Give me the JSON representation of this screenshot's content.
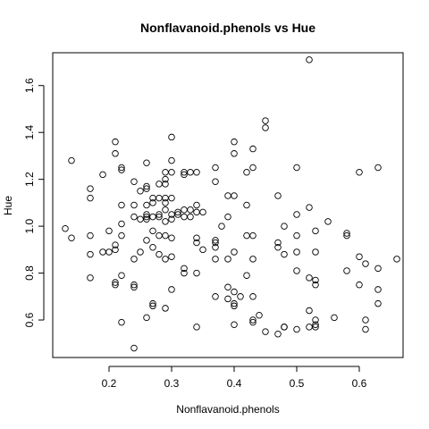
{
  "chart_data": {
    "type": "scatter",
    "title": "Nonflavanoid.phenols vs Hue",
    "xlabel": "Nonflavanoid.phenols",
    "ylabel": "Hue",
    "xlim": [
      0.11,
      0.67
    ],
    "ylim": [
      0.44,
      1.74
    ],
    "xticks": [
      0.2,
      0.3,
      0.4,
      0.5,
      0.6
    ],
    "xtick_labels": [
      "0.2",
      "0.3",
      "0.4",
      "0.5",
      "0.6"
    ],
    "yticks": [
      0.6,
      0.8,
      1.0,
      1.2,
      1.4,
      1.6
    ],
    "ytick_labels": [
      "0.6",
      "0.8",
      "1.0",
      "1.2",
      "1.4",
      "1.6"
    ],
    "grid": false,
    "legend": "none",
    "marker": "open-circle",
    "color": "#000000",
    "points": [
      [
        0.13,
        0.99
      ],
      [
        0.14,
        0.95
      ],
      [
        0.14,
        1.28
      ],
      [
        0.17,
        1.16
      ],
      [
        0.17,
        1.12
      ],
      [
        0.17,
        0.96
      ],
      [
        0.17,
        0.88
      ],
      [
        0.17,
        0.78
      ],
      [
        0.19,
        1.22
      ],
      [
        0.19,
        0.89
      ],
      [
        0.2,
        0.98
      ],
      [
        0.2,
        0.89
      ],
      [
        0.21,
        1.36
      ],
      [
        0.21,
        1.31
      ],
      [
        0.21,
        0.92
      ],
      [
        0.21,
        0.9
      ],
      [
        0.21,
        0.76
      ],
      [
        0.21,
        0.75
      ],
      [
        0.22,
        1.25
      ],
      [
        0.22,
        1.24
      ],
      [
        0.22,
        1.09
      ],
      [
        0.22,
        1.01
      ],
      [
        0.22,
        0.96
      ],
      [
        0.22,
        0.79
      ],
      [
        0.22,
        0.59
      ],
      [
        0.24,
        1.19
      ],
      [
        0.24,
        1.09
      ],
      [
        0.24,
        1.04
      ],
      [
        0.24,
        0.86
      ],
      [
        0.24,
        0.75
      ],
      [
        0.24,
        0.74
      ],
      [
        0.24,
        0.48
      ],
      [
        0.25,
        1.15
      ],
      [
        0.25,
        1.03
      ],
      [
        0.25,
        0.89
      ],
      [
        0.26,
        1.27
      ],
      [
        0.26,
        1.17
      ],
      [
        0.26,
        1.16
      ],
      [
        0.26,
        1.09
      ],
      [
        0.26,
        1.05
      ],
      [
        0.26,
        1.04
      ],
      [
        0.26,
        1.03
      ],
      [
        0.26,
        0.94
      ],
      [
        0.26,
        0.61
      ],
      [
        0.27,
        1.12
      ],
      [
        0.27,
        1.1
      ],
      [
        0.27,
        1.04
      ],
      [
        0.27,
        0.98
      ],
      [
        0.27,
        0.91
      ],
      [
        0.27,
        0.67
      ],
      [
        0.27,
        0.66
      ],
      [
        0.28,
        1.18
      ],
      [
        0.28,
        1.12
      ],
      [
        0.28,
        1.05
      ],
      [
        0.28,
        1.04
      ],
      [
        0.28,
        0.96
      ],
      [
        0.28,
        0.88
      ],
      [
        0.29,
        1.23
      ],
      [
        0.29,
        1.2
      ],
      [
        0.29,
        1.18
      ],
      [
        0.29,
        1.12
      ],
      [
        0.29,
        1.1
      ],
      [
        0.29,
        1.07
      ],
      [
        0.29,
        1.02
      ],
      [
        0.29,
        0.96
      ],
      [
        0.29,
        0.86
      ],
      [
        0.29,
        0.65
      ],
      [
        0.3,
        1.38
      ],
      [
        0.3,
        1.28
      ],
      [
        0.3,
        1.23
      ],
      [
        0.3,
        1.12
      ],
      [
        0.3,
        1.05
      ],
      [
        0.3,
        1.03
      ],
      [
        0.3,
        0.95
      ],
      [
        0.3,
        0.87
      ],
      [
        0.3,
        0.73
      ],
      [
        0.31,
        1.06
      ],
      [
        0.31,
        1.05
      ],
      [
        0.32,
        1.23
      ],
      [
        0.32,
        1.22
      ],
      [
        0.32,
        1.07
      ],
      [
        0.32,
        1.04
      ],
      [
        0.32,
        0.82
      ],
      [
        0.32,
        0.8
      ],
      [
        0.33,
        1.23
      ],
      [
        0.33,
        1.07
      ],
      [
        0.33,
        1.04
      ],
      [
        0.34,
        1.23
      ],
      [
        0.34,
        1.09
      ],
      [
        0.34,
        1.06
      ],
      [
        0.34,
        0.95
      ],
      [
        0.34,
        0.93
      ],
      [
        0.34,
        0.8
      ],
      [
        0.34,
        0.57
      ],
      [
        0.35,
        1.06
      ],
      [
        0.35,
        0.9
      ],
      [
        0.37,
        1.25
      ],
      [
        0.37,
        1.19
      ],
      [
        0.37,
        0.94
      ],
      [
        0.37,
        0.93
      ],
      [
        0.37,
        0.91
      ],
      [
        0.37,
        0.86
      ],
      [
        0.37,
        0.7
      ],
      [
        0.38,
        1.0
      ],
      [
        0.39,
        1.13
      ],
      [
        0.39,
        1.04
      ],
      [
        0.39,
        0.86
      ],
      [
        0.39,
        0.74
      ],
      [
        0.39,
        0.69
      ],
      [
        0.4,
        1.36
      ],
      [
        0.4,
        1.31
      ],
      [
        0.4,
        1.13
      ],
      [
        0.4,
        0.89
      ],
      [
        0.4,
        0.72
      ],
      [
        0.4,
        0.67
      ],
      [
        0.4,
        0.66
      ],
      [
        0.4,
        0.58
      ],
      [
        0.41,
        0.7
      ],
      [
        0.42,
        1.23
      ],
      [
        0.42,
        1.09
      ],
      [
        0.42,
        0.96
      ],
      [
        0.42,
        0.79
      ],
      [
        0.43,
        1.25
      ],
      [
        0.43,
        1.33
      ],
      [
        0.43,
        0.96
      ],
      [
        0.43,
        0.86
      ],
      [
        0.43,
        0.7
      ],
      [
        0.43,
        0.6
      ],
      [
        0.43,
        0.59
      ],
      [
        0.44,
        0.62
      ],
      [
        0.45,
        1.45
      ],
      [
        0.45,
        1.42
      ],
      [
        0.45,
        0.55
      ],
      [
        0.47,
        1.13
      ],
      [
        0.47,
        0.93
      ],
      [
        0.47,
        0.91
      ],
      [
        0.47,
        0.54
      ],
      [
        0.48,
        1.0
      ],
      [
        0.48,
        0.88
      ],
      [
        0.48,
        0.57
      ],
      [
        0.48,
        0.57
      ],
      [
        0.5,
        1.25
      ],
      [
        0.5,
        1.05
      ],
      [
        0.5,
        0.96
      ],
      [
        0.5,
        0.89
      ],
      [
        0.5,
        0.81
      ],
      [
        0.5,
        0.56
      ],
      [
        0.52,
        1.71
      ],
      [
        0.52,
        1.08
      ],
      [
        0.52,
        0.78
      ],
      [
        0.52,
        0.64
      ],
      [
        0.52,
        0.57
      ],
      [
        0.53,
        0.98
      ],
      [
        0.53,
        0.89
      ],
      [
        0.53,
        0.77
      ],
      [
        0.53,
        0.75
      ],
      [
        0.53,
        0.6
      ],
      [
        0.53,
        0.58
      ],
      [
        0.53,
        0.57
      ],
      [
        0.55,
        1.02
      ],
      [
        0.56,
        0.61
      ],
      [
        0.58,
        0.97
      ],
      [
        0.58,
        0.96
      ],
      [
        0.58,
        0.81
      ],
      [
        0.6,
        1.23
      ],
      [
        0.6,
        0.87
      ],
      [
        0.6,
        0.75
      ],
      [
        0.61,
        0.84
      ],
      [
        0.61,
        0.6
      ],
      [
        0.61,
        0.56
      ],
      [
        0.63,
        1.25
      ],
      [
        0.63,
        0.82
      ],
      [
        0.63,
        0.73
      ],
      [
        0.63,
        0.67
      ],
      [
        0.66,
        0.86
      ]
    ]
  }
}
